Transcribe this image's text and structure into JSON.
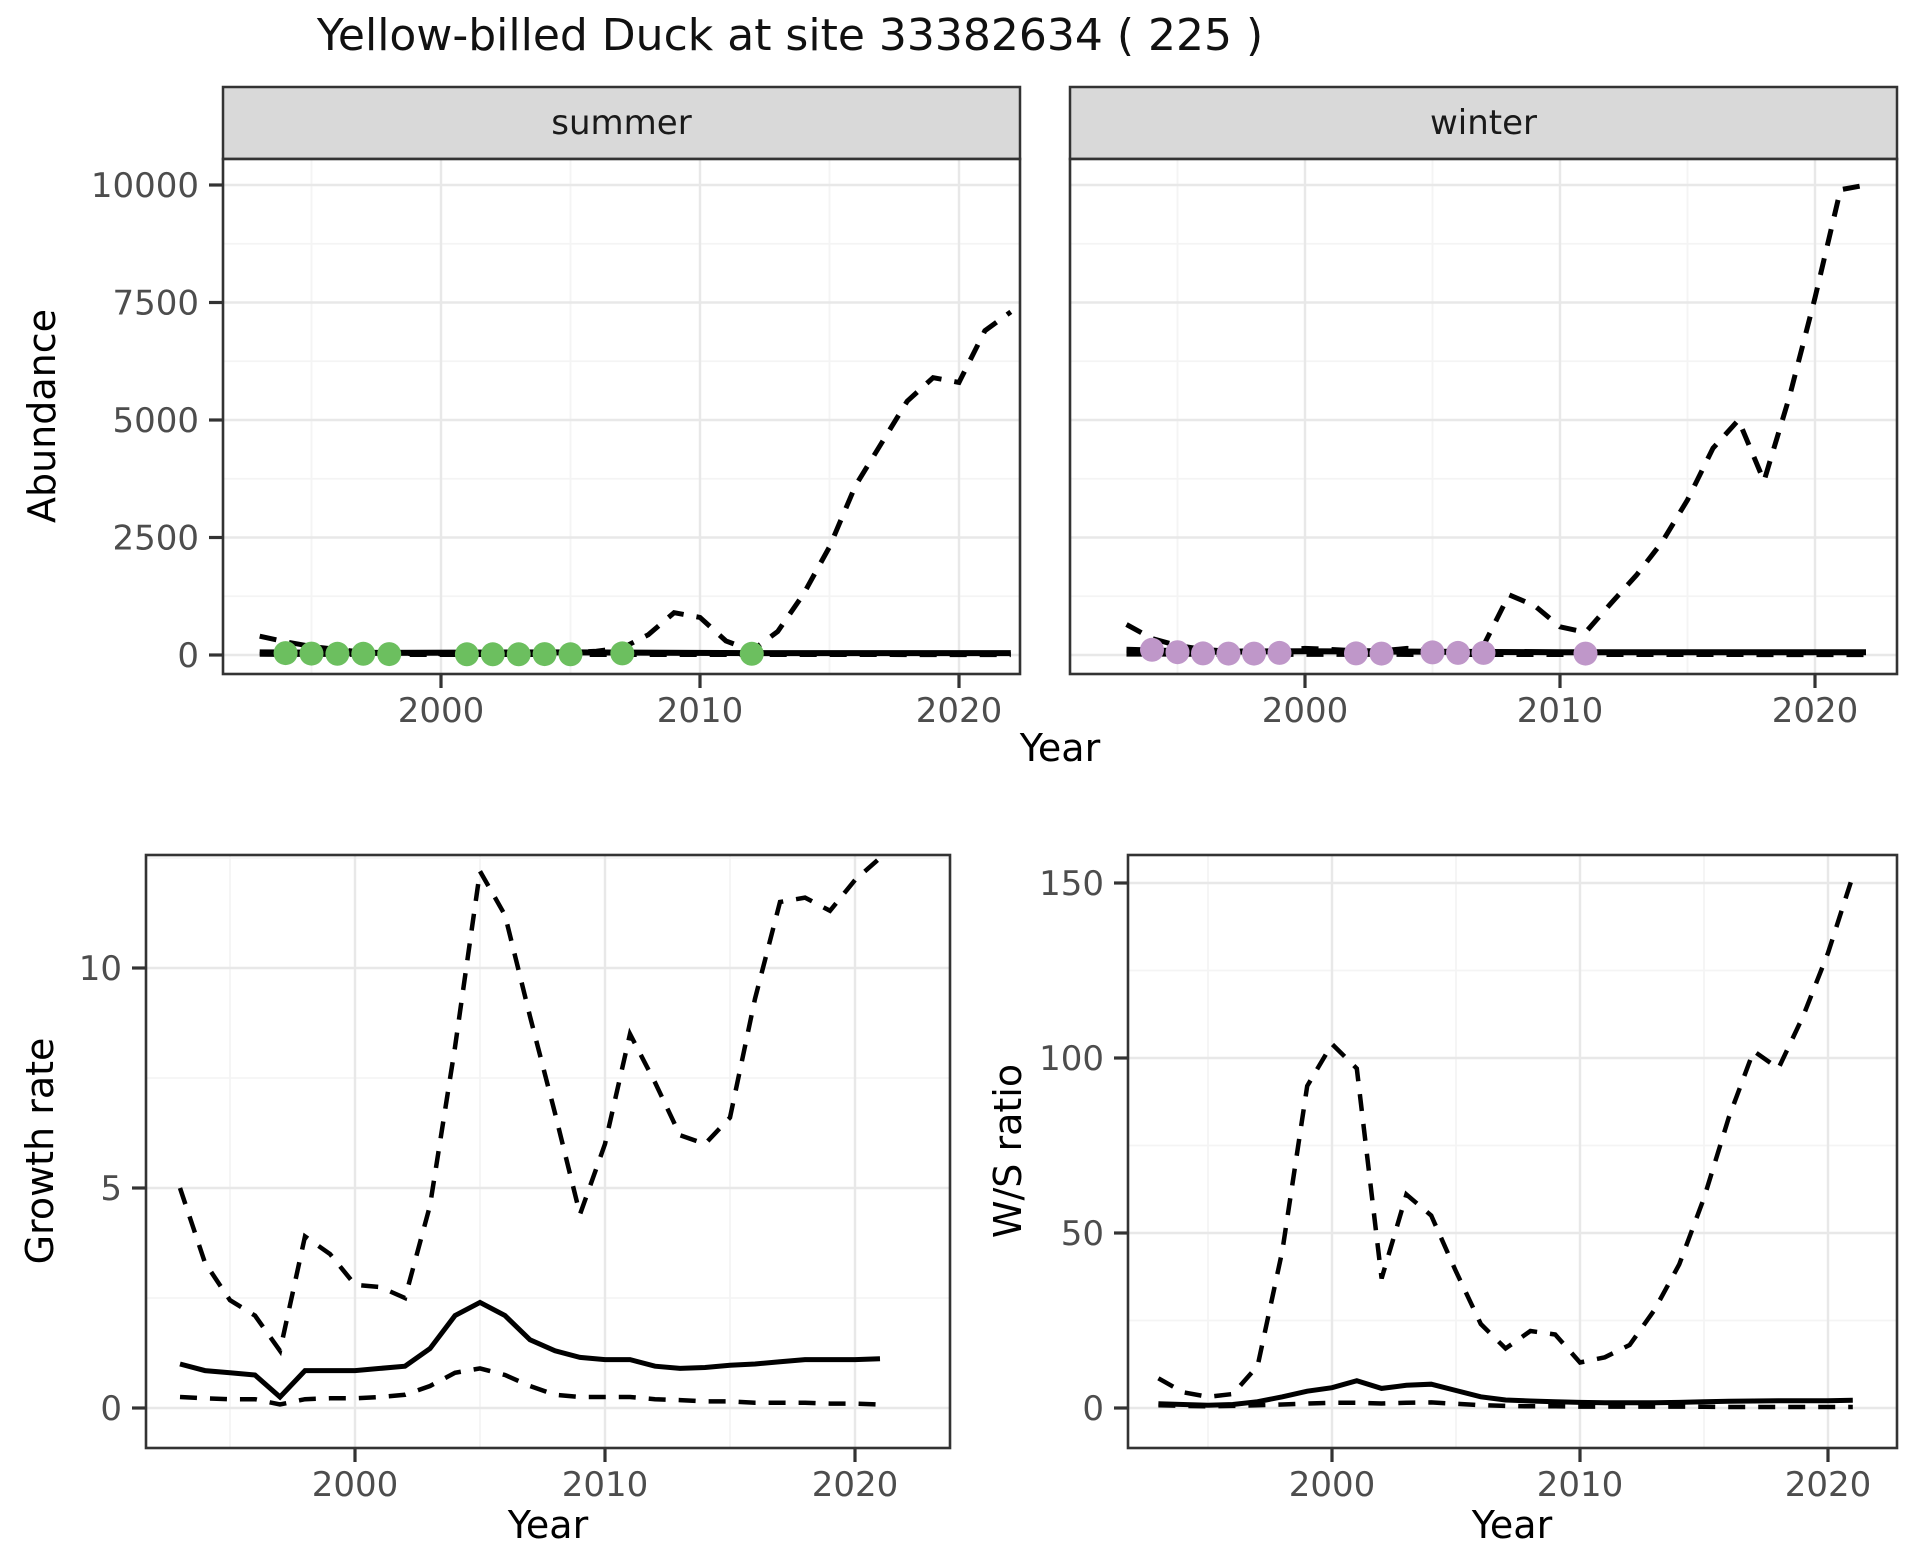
{
  "colors": {
    "point_green": "#6CBF5F",
    "point_purple": "#BF97C9",
    "line": "#000000",
    "strip_fill": "#D9D9D9",
    "grid_major": "#E8E8E8",
    "grid_minor": "#F4F4F4",
    "axis_text": "#4D4D4D",
    "panel_border": "#333333"
  },
  "chart_data": {
    "type": "line",
    "title": "Yellow-billed Duck at site 33382634 ( 225 )",
    "top": {
      "ylabel": "Abundance",
      "xlabel": "Year",
      "yticks": [
        0,
        2500,
        5000,
        7500,
        10000
      ],
      "xticks": [
        2000,
        2010,
        2020
      ],
      "ylim": [
        0,
        10000
      ],
      "xlim": [
        1991.5,
        2022.5
      ],
      "grid": true,
      "panels": [
        {
          "strip": "summer",
          "point_color": "#6CBF5F",
          "upper": [
            [
              1993,
              400
            ],
            [
              1994,
              280
            ],
            [
              1995,
              180
            ],
            [
              1996,
              120
            ],
            [
              1997,
              60
            ],
            [
              1998,
              40
            ],
            [
              1999,
              30
            ],
            [
              2000,
              30
            ],
            [
              2001,
              30
            ],
            [
              2002,
              30
            ],
            [
              2003,
              40
            ],
            [
              2004,
              40
            ],
            [
              2005,
              50
            ],
            [
              2006,
              80
            ],
            [
              2007,
              150
            ],
            [
              2008,
              430
            ],
            [
              2009,
              900
            ],
            [
              2010,
              800
            ],
            [
              2011,
              300
            ],
            [
              2012,
              90
            ],
            [
              2013,
              500
            ],
            [
              2014,
              1300
            ],
            [
              2015,
              2300
            ],
            [
              2016,
              3600
            ],
            [
              2017,
              4500
            ],
            [
              2018,
              5400
            ],
            [
              2019,
              5900
            ],
            [
              2020,
              5800
            ],
            [
              2021,
              6900
            ],
            [
              2022,
              7300
            ]
          ],
          "median": [
            [
              1993,
              55
            ],
            [
              1997,
              45
            ],
            [
              2005,
              55
            ],
            [
              2012,
              40
            ],
            [
              2022,
              40
            ]
          ],
          "lower": [
            [
              1993,
              15
            ],
            [
              2000,
              10
            ],
            [
              2010,
              10
            ],
            [
              2022,
              8
            ]
          ],
          "points": [
            [
              1994,
              40
            ],
            [
              1995,
              30
            ],
            [
              1996,
              25
            ],
            [
              1997,
              25
            ],
            [
              1998,
              20
            ],
            [
              2001,
              15
            ],
            [
              2002,
              15
            ],
            [
              2003,
              15
            ],
            [
              2004,
              20
            ],
            [
              2005,
              15
            ],
            [
              2007,
              35
            ],
            [
              2012,
              25
            ]
          ]
        },
        {
          "strip": "winter",
          "point_color": "#BF97C9",
          "upper": [
            [
              1993,
              650
            ],
            [
              1994,
              350
            ],
            [
              1995,
              200
            ],
            [
              1996,
              120
            ],
            [
              1997,
              80
            ],
            [
              1998,
              80
            ],
            [
              1999,
              100
            ],
            [
              2000,
              140
            ],
            [
              2001,
              120
            ],
            [
              2002,
              90
            ],
            [
              2003,
              90
            ],
            [
              2004,
              140
            ],
            [
              2005,
              100
            ],
            [
              2006,
              90
            ],
            [
              2007,
              200
            ],
            [
              2008,
              1280
            ],
            [
              2009,
              1050
            ],
            [
              2010,
              600
            ],
            [
              2011,
              480
            ],
            [
              2012,
              1100
            ],
            [
              2013,
              1700
            ],
            [
              2014,
              2400
            ],
            [
              2015,
              3300
            ],
            [
              2016,
              4400
            ],
            [
              2017,
              5000
            ],
            [
              2018,
              3700
            ],
            [
              2019,
              5500
            ],
            [
              2020,
              7600
            ],
            [
              2021,
              9900
            ],
            [
              2022,
              10000
            ]
          ],
          "median": [
            [
              1993,
              110
            ],
            [
              1996,
              70
            ],
            [
              2000,
              80
            ],
            [
              2005,
              70
            ],
            [
              2010,
              60
            ],
            [
              2015,
              60
            ],
            [
              2022,
              60
            ]
          ],
          "lower": [
            [
              1993,
              20
            ],
            [
              2000,
              12
            ],
            [
              2010,
              10
            ],
            [
              2022,
              8
            ]
          ],
          "points": [
            [
              1994,
              110
            ],
            [
              1995,
              60
            ],
            [
              1996,
              35
            ],
            [
              1997,
              30
            ],
            [
              1998,
              30
            ],
            [
              1999,
              45
            ],
            [
              2002,
              35
            ],
            [
              2003,
              30
            ],
            [
              2005,
              55
            ],
            [
              2006,
              45
            ],
            [
              2007,
              45
            ],
            [
              2011,
              30
            ]
          ]
        }
      ]
    },
    "growth": {
      "ylabel": "Growth rate",
      "xlabel": "Year",
      "yticks": [
        0,
        5,
        10
      ],
      "xticks": [
        2000,
        2010,
        2020
      ],
      "ylim": [
        0,
        12.5
      ],
      "xlim": [
        1991.5,
        2023.5
      ],
      "grid": true,
      "upper": [
        [
          1993,
          5.0
        ],
        [
          1994,
          3.3
        ],
        [
          1995,
          2.45
        ],
        [
          1996,
          2.1
        ],
        [
          1997,
          1.3
        ],
        [
          1998,
          3.9
        ],
        [
          1999,
          3.5
        ],
        [
          2000,
          2.8
        ],
        [
          2001,
          2.75
        ],
        [
          2002,
          2.5
        ],
        [
          2003,
          4.6
        ],
        [
          2004,
          8.2
        ],
        [
          2005,
          12.2
        ],
        [
          2006,
          11.2
        ],
        [
          2007,
          8.9
        ],
        [
          2008,
          6.7
        ],
        [
          2009,
          4.4
        ],
        [
          2010,
          6.0
        ],
        [
          2011,
          8.5
        ],
        [
          2012,
          7.4
        ],
        [
          2013,
          6.2
        ],
        [
          2014,
          6.0
        ],
        [
          2015,
          6.6
        ],
        [
          2016,
          9.3
        ],
        [
          2017,
          11.5
        ],
        [
          2018,
          11.6
        ],
        [
          2019,
          11.3
        ],
        [
          2020,
          12.0
        ],
        [
          2021,
          12.5
        ]
      ],
      "median": [
        [
          1993,
          1.0
        ],
        [
          1994,
          0.85
        ],
        [
          1995,
          0.8
        ],
        [
          1996,
          0.75
        ],
        [
          1997,
          0.25
        ],
        [
          1998,
          0.85
        ],
        [
          1999,
          0.85
        ],
        [
          2000,
          0.85
        ],
        [
          2001,
          0.9
        ],
        [
          2002,
          0.95
        ],
        [
          2003,
          1.35
        ],
        [
          2004,
          2.1
        ],
        [
          2005,
          2.4
        ],
        [
          2006,
          2.1
        ],
        [
          2007,
          1.55
        ],
        [
          2008,
          1.3
        ],
        [
          2009,
          1.15
        ],
        [
          2010,
          1.1
        ],
        [
          2011,
          1.1
        ],
        [
          2012,
          0.95
        ],
        [
          2013,
          0.9
        ],
        [
          2014,
          0.92
        ],
        [
          2015,
          0.97
        ],
        [
          2016,
          1.0
        ],
        [
          2017,
          1.05
        ],
        [
          2018,
          1.1
        ],
        [
          2019,
          1.1
        ],
        [
          2020,
          1.1
        ],
        [
          2021,
          1.12
        ]
      ],
      "lower": [
        [
          1993,
          0.25
        ],
        [
          1994,
          0.22
        ],
        [
          1995,
          0.2
        ],
        [
          1996,
          0.2
        ],
        [
          1997,
          0.08
        ],
        [
          1998,
          0.2
        ],
        [
          1999,
          0.22
        ],
        [
          2000,
          0.22
        ],
        [
          2001,
          0.25
        ],
        [
          2002,
          0.3
        ],
        [
          2003,
          0.5
        ],
        [
          2004,
          0.8
        ],
        [
          2005,
          0.9
        ],
        [
          2006,
          0.75
        ],
        [
          2007,
          0.5
        ],
        [
          2008,
          0.3
        ],
        [
          2009,
          0.25
        ],
        [
          2010,
          0.25
        ],
        [
          2011,
          0.25
        ],
        [
          2012,
          0.2
        ],
        [
          2013,
          0.18
        ],
        [
          2014,
          0.15
        ],
        [
          2015,
          0.15
        ],
        [
          2016,
          0.12
        ],
        [
          2017,
          0.12
        ],
        [
          2018,
          0.12
        ],
        [
          2019,
          0.1
        ],
        [
          2020,
          0.1
        ],
        [
          2021,
          0.08
        ]
      ]
    },
    "ws_ratio": {
      "ylabel": "W/S ratio",
      "xlabel": "Year",
      "yticks": [
        0,
        50,
        100,
        150
      ],
      "xticks": [
        2000,
        2010,
        2020
      ],
      "ylim": [
        0,
        152
      ],
      "xlim": [
        1991.5,
        2023.5
      ],
      "grid": true,
      "upper": [
        [
          1993,
          8.5
        ],
        [
          1994,
          4.5
        ],
        [
          1995,
          3.2
        ],
        [
          1996,
          4.0
        ],
        [
          1997,
          12
        ],
        [
          1998,
          45
        ],
        [
          1999,
          92
        ],
        [
          2000,
          104
        ],
        [
          2001,
          97
        ],
        [
          2002,
          37
        ],
        [
          2003,
          61
        ],
        [
          2004,
          55
        ],
        [
          2005,
          39
        ],
        [
          2006,
          24
        ],
        [
          2007,
          17
        ],
        [
          2008,
          22
        ],
        [
          2009,
          21
        ],
        [
          2010,
          13
        ],
        [
          2011,
          14.5
        ],
        [
          2012,
          18
        ],
        [
          2013,
          28
        ],
        [
          2014,
          41
        ],
        [
          2015,
          60
        ],
        [
          2016,
          83
        ],
        [
          2017,
          102
        ],
        [
          2018,
          97
        ],
        [
          2019,
          112
        ],
        [
          2020,
          130
        ],
        [
          2021,
          152
        ]
      ],
      "median": [
        [
          1993,
          1.2
        ],
        [
          1994,
          1.0
        ],
        [
          1995,
          0.8
        ],
        [
          1996,
          1.0
        ],
        [
          1997,
          1.8
        ],
        [
          1998,
          3.2
        ],
        [
          1999,
          4.8
        ],
        [
          2000,
          5.8
        ],
        [
          2001,
          7.8
        ],
        [
          2002,
          5.6
        ],
        [
          2003,
          6.5
        ],
        [
          2004,
          6.8
        ],
        [
          2005,
          5.0
        ],
        [
          2006,
          3.2
        ],
        [
          2007,
          2.3
        ],
        [
          2008,
          2.0
        ],
        [
          2009,
          1.8
        ],
        [
          2010,
          1.6
        ],
        [
          2011,
          1.5
        ],
        [
          2012,
          1.5
        ],
        [
          2013,
          1.5
        ],
        [
          2014,
          1.6
        ],
        [
          2015,
          1.8
        ],
        [
          2016,
          1.9
        ],
        [
          2017,
          2.0
        ],
        [
          2018,
          2.1
        ],
        [
          2019,
          2.1
        ],
        [
          2020,
          2.1
        ],
        [
          2021,
          2.2
        ]
      ],
      "lower": [
        [
          1993,
          0.8
        ],
        [
          1994,
          0.6
        ],
        [
          1995,
          0.5
        ],
        [
          1996,
          0.6
        ],
        [
          1997,
          0.8
        ],
        [
          1998,
          1.0
        ],
        [
          1999,
          1.3
        ],
        [
          2000,
          1.5
        ],
        [
          2001,
          1.5
        ],
        [
          2002,
          1.3
        ],
        [
          2003,
          1.5
        ],
        [
          2004,
          1.6
        ],
        [
          2005,
          1.2
        ],
        [
          2006,
          0.8
        ],
        [
          2007,
          0.6
        ],
        [
          2008,
          0.5
        ],
        [
          2009,
          0.5
        ],
        [
          2010,
          0.4
        ],
        [
          2011,
          0.4
        ],
        [
          2012,
          0.4
        ],
        [
          2013,
          0.4
        ],
        [
          2014,
          0.4
        ],
        [
          2015,
          0.35
        ],
        [
          2016,
          0.3
        ],
        [
          2017,
          0.3
        ],
        [
          2018,
          0.3
        ],
        [
          2019,
          0.3
        ],
        [
          2020,
          0.3
        ],
        [
          2021,
          0.3
        ]
      ]
    }
  }
}
